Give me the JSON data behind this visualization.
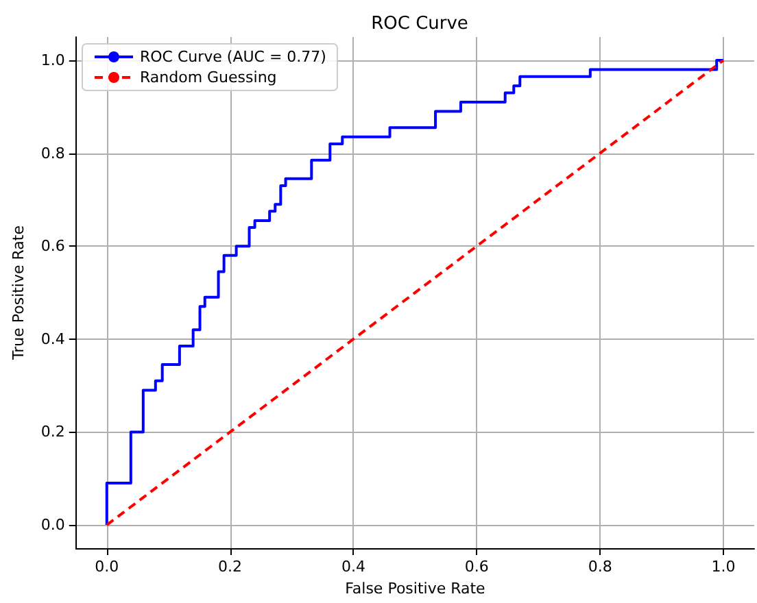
{
  "chart_data": {
    "type": "line",
    "title": "ROC Curve",
    "xlabel": "False Positive Rate",
    "ylabel": "True Positive Rate",
    "xlim": [
      -0.05,
      1.05
    ],
    "ylim": [
      -0.05,
      1.05
    ],
    "xticks": [
      {
        "value": 0,
        "label": "0.0"
      },
      {
        "value": 0.2,
        "label": "0.2"
      },
      {
        "value": 0.4,
        "label": "0.4"
      },
      {
        "value": 0.6,
        "label": "0.6"
      },
      {
        "value": 0.8,
        "label": "0.8"
      },
      {
        "value": 1,
        "label": "1.0"
      }
    ],
    "yticks": [
      {
        "value": 0,
        "label": "0.0"
      },
      {
        "value": 0.2,
        "label": "0.2"
      },
      {
        "value": 0.4,
        "label": "0.4"
      },
      {
        "value": 0.6,
        "label": "0.6"
      },
      {
        "value": 0.8,
        "label": "0.8"
      },
      {
        "value": 1,
        "label": "1.0"
      }
    ],
    "grid": true,
    "legend": "top left",
    "series": [
      {
        "name": "ROC Curve (AUC = 0.77)",
        "type": "step",
        "color": "#0000ff",
        "line_style": "solid",
        "x": [
          0,
          0,
          0.039,
          0.059,
          0.079,
          0.09,
          0.118,
          0.14,
          0.151,
          0.159,
          0.181,
          0.19,
          0.21,
          0.231,
          0.24,
          0.264,
          0.273,
          0.282,
          0.29,
          0.332,
          0.362,
          0.382,
          0.459,
          0.533,
          0.574,
          0.646,
          0.66,
          0.67,
          0.784,
          0.989,
          1
        ],
        "values": [
          0,
          0.09,
          0.2,
          0.29,
          0.31,
          0.345,
          0.385,
          0.42,
          0.47,
          0.49,
          0.545,
          0.58,
          0.6,
          0.64,
          0.655,
          0.675,
          0.69,
          0.73,
          0.745,
          0.785,
          0.82,
          0.835,
          0.855,
          0.89,
          0.91,
          0.93,
          0.945,
          0.965,
          0.98,
          1,
          1
        ]
      },
      {
        "name": "Random Guessing",
        "color": "#ff0000",
        "line_style": "dashed",
        "x": [
          0,
          1
        ],
        "values": [
          0,
          1
        ]
      }
    ]
  }
}
